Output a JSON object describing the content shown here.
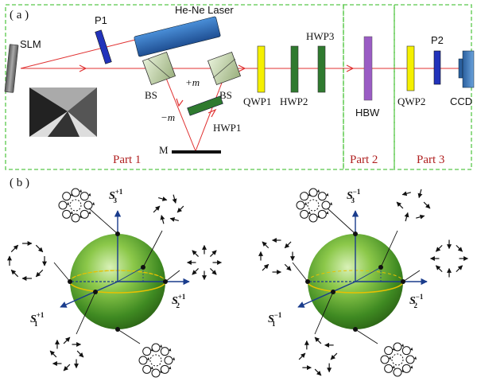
{
  "panel_a": {
    "label": "( a )",
    "components": {
      "slm": "SLM",
      "p1": "P1",
      "laser": "He-Ne Laser",
      "bs_left": "BS",
      "bs_right": "BS",
      "plus_m": "+m",
      "minus_m": "−m",
      "hwp1": "HWP1",
      "mirror": "M",
      "qwp1": "QWP1",
      "hwp2": "HWP2",
      "hwp3": "HWP3",
      "hbw": "HBW",
      "qwp2": "QWP2",
      "p2": "P2",
      "ccd": "CCD"
    },
    "parts": {
      "part1": "Part 1",
      "part2": "Part 2",
      "part3": "Part 3"
    }
  },
  "panel_b": {
    "label": "( b )",
    "sphere_left": {
      "s3": "S",
      "s3_sub": "3",
      "s3_sup": "+1",
      "s2": "S",
      "s2_sub": "2",
      "s2_sup": "+1",
      "s1": "S",
      "s1_sub": "1",
      "s1_sup": "+1"
    },
    "sphere_right": {
      "s3": "S",
      "s3_sub": "3",
      "s3_sup": "−1",
      "s2": "S",
      "s2_sub": "2",
      "s2_sup": "−1",
      "s1": "S",
      "s1_sub": "1",
      "s1_sup": "−1"
    }
  },
  "colors": {
    "border": "#59c84a",
    "beam": "#e03030",
    "laser": "#2a6fbf",
    "polarizer": "#2233bb",
    "qwp": "#f5f000",
    "hwp": "#2f7a2f",
    "hbw": "#9a5cc4",
    "sphere": "#4c9a2a",
    "equator": "#e8c000",
    "axis": "#1a3c8c",
    "part_text": "#b02020"
  }
}
